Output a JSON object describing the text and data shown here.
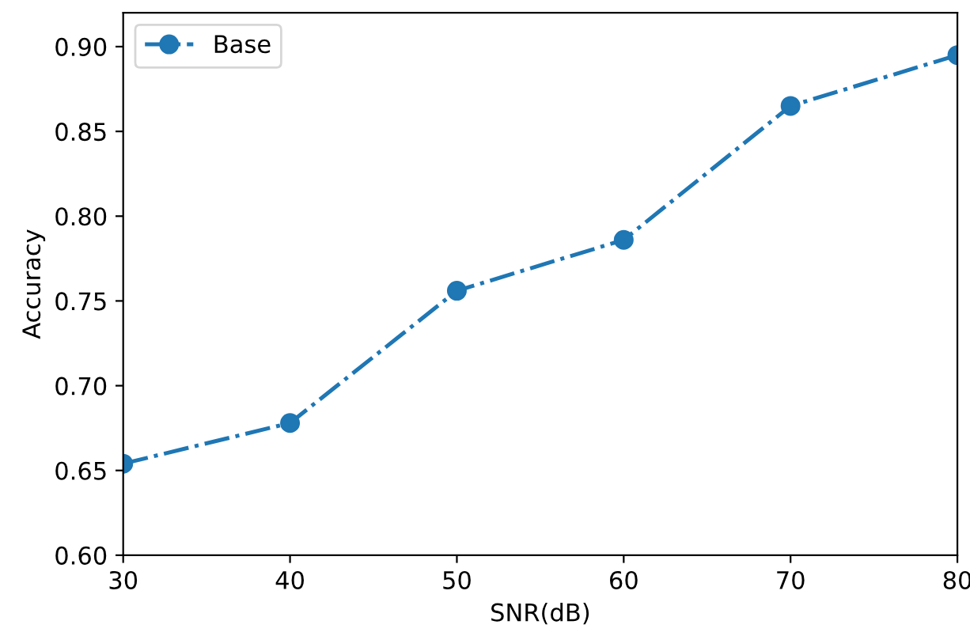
{
  "chart_data": {
    "type": "line",
    "xlabel": "SNR(dB)",
    "ylabel": "Accuracy",
    "x": [
      30,
      40,
      50,
      60,
      70,
      80
    ],
    "series": [
      {
        "name": "Base",
        "color": "#1f77b4",
        "values": [
          0.654,
          0.678,
          0.756,
          0.786,
          0.865,
          0.895
        ]
      }
    ],
    "xlim": [
      30,
      80
    ],
    "xticks": [
      30,
      40,
      50,
      60,
      70,
      80
    ],
    "ylim": [
      0.6,
      0.92
    ],
    "yticks": [
      {
        "value": 0.6,
        "label": "0.60"
      },
      {
        "value": 0.65,
        "label": "0.65"
      },
      {
        "value": 0.7,
        "label": "0.70"
      },
      {
        "value": 0.75,
        "label": "0.75"
      },
      {
        "value": 0.8,
        "label": "0.80"
      },
      {
        "value": 0.85,
        "label": "0.85"
      },
      {
        "value": 0.9,
        "label": "0.90"
      }
    ],
    "marker": "circle",
    "line_style": "dashdot",
    "legend": "top left",
    "grid": false
  }
}
